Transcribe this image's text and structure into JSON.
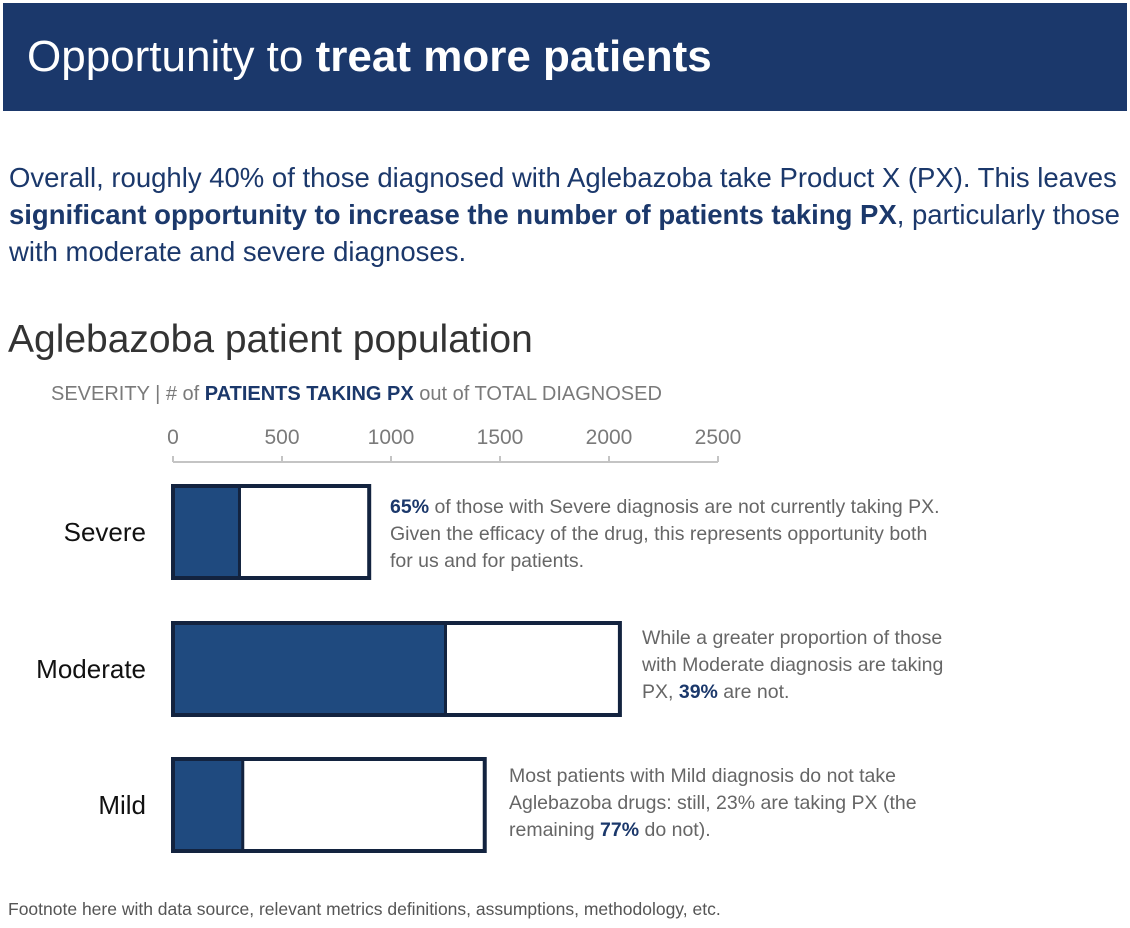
{
  "header": {
    "title_plain": "Opportunity to ",
    "title_bold": "treat more patients"
  },
  "summary": {
    "part1": "Overall, roughly 40% of those diagnosed with Aglebazoba take Product X (PX). This leaves ",
    "bold": "significant opportunity to increase the number of patients taking PX",
    "part2": ", particularly those with moderate and severe diagnoses."
  },
  "chart_data": {
    "type": "bar",
    "orientation": "horizontal",
    "title": "Aglebazoba patient population",
    "subtitle": {
      "part1": "SEVERITY | # of ",
      "highlight": "PATIENTS TAKING PX",
      "part2": " out of TOTAL DIAGNOSED"
    },
    "categories": [
      "Severe",
      "Moderate",
      "Mild"
    ],
    "series": [
      {
        "name": "PATIENTS TAKING PX",
        "values": [
          305,
          1250,
          320
        ],
        "color": "#1f4a7f"
      },
      {
        "name": "TOTAL DIAGNOSED",
        "values": [
          900,
          2050,
          1430
        ],
        "color": "#ffffff"
      }
    ],
    "x_ticks": [
      "0",
      "500",
      "1000",
      "1500",
      "2000",
      "2500"
    ],
    "xlim": [
      0,
      2500
    ],
    "axis_position": "top",
    "grid": false,
    "bar_outline_color": "#13233f"
  },
  "annotations": [
    {
      "bold": "65%",
      "text_after": " of those with Severe diagnosis are not currently taking PX. Given the efficacy of the drug, this represents opportunity both for us and for patients."
    },
    {
      "text_before": "While a greater proportion of those with Moderate diagnosis are taking PX, ",
      "bold": "39%",
      "text_after": " are not."
    },
    {
      "text_before": "Most patients with Mild diagnosis do not take Aglebazoba drugs: still, 23% are taking PX (the remaining ",
      "bold": "77%",
      "text_after": " do not)."
    }
  ],
  "footnote": "Footnote here with data source, relevant metrics definitions, assumptions, methodology, etc."
}
